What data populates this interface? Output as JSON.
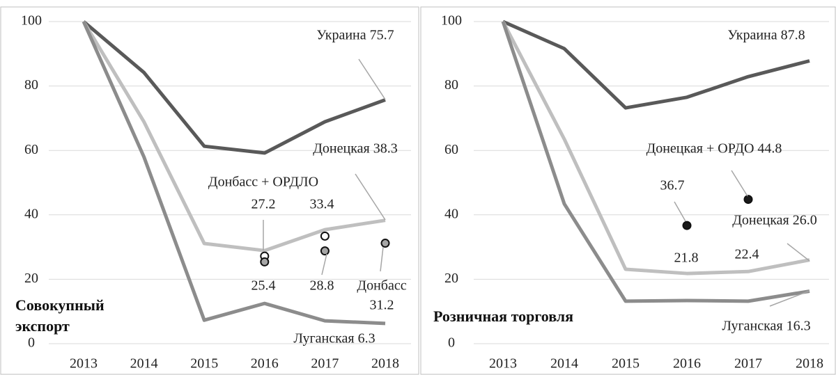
{
  "chart_data": [
    {
      "type": "line",
      "title": "Совокупный экспорт",
      "categories": [
        "2013",
        "2014",
        "2015",
        "2016",
        "2017",
        "2018"
      ],
      "ylim": [
        0,
        100
      ],
      "yticks": [
        0,
        20,
        40,
        60,
        80,
        100
      ],
      "grid": true,
      "series": [
        {
          "label": "Украина 75.7",
          "color": "#595959",
          "values": [
            100,
            84.2,
            61.3,
            59.2,
            68.9,
            75.7
          ]
        },
        {
          "label": "Донецкая 38.3",
          "color": "#bfbfbf",
          "values": [
            100,
            68.9,
            31.1,
            28.9,
            35.4,
            38.3
          ]
        },
        {
          "label": "Луганская 6.3",
          "color": "#8c8c8c",
          "values": [
            100,
            58,
            7.3,
            12.5,
            7.1,
            6.3
          ]
        }
      ],
      "markers": [
        {
          "label": "Донбасс + ОРДЛО",
          "color": "#ffffff",
          "values": [
            null,
            null,
            null,
            27.2,
            33.4,
            null
          ]
        },
        {
          "label": "Донбасс",
          "color": "#a6a6a6",
          "values": [
            null,
            null,
            null,
            25.4,
            28.8,
            31.2
          ]
        }
      ]
    },
    {
      "type": "line",
      "title": "Розничная торговля",
      "categories": [
        "2013",
        "2014",
        "2015",
        "2016",
        "2017",
        "2018"
      ],
      "ylim": [
        0,
        100
      ],
      "yticks": [
        0,
        20,
        40,
        60,
        80,
        100
      ],
      "grid": true,
      "series": [
        {
          "label": "Украина 87.8",
          "color": "#595959",
          "values": [
            100,
            91.6,
            73.2,
            76.5,
            82.9,
            87.8
          ]
        },
        {
          "label": "Донецкая 26.0",
          "color": "#bfbfbf",
          "values": [
            100,
            63.5,
            23.1,
            21.8,
            22.4,
            26.0
          ]
        },
        {
          "label": "Луганская 16.3",
          "color": "#8c8c8c",
          "values": [
            100,
            43.4,
            13.2,
            13.4,
            13.2,
            16.3
          ]
        }
      ],
      "markers": [
        {
          "label": "Донецкая + ОРДО 44.8",
          "color": "#1a1a1a",
          "values": [
            null,
            null,
            null,
            36.7,
            44.8,
            null
          ]
        }
      ]
    }
  ]
}
